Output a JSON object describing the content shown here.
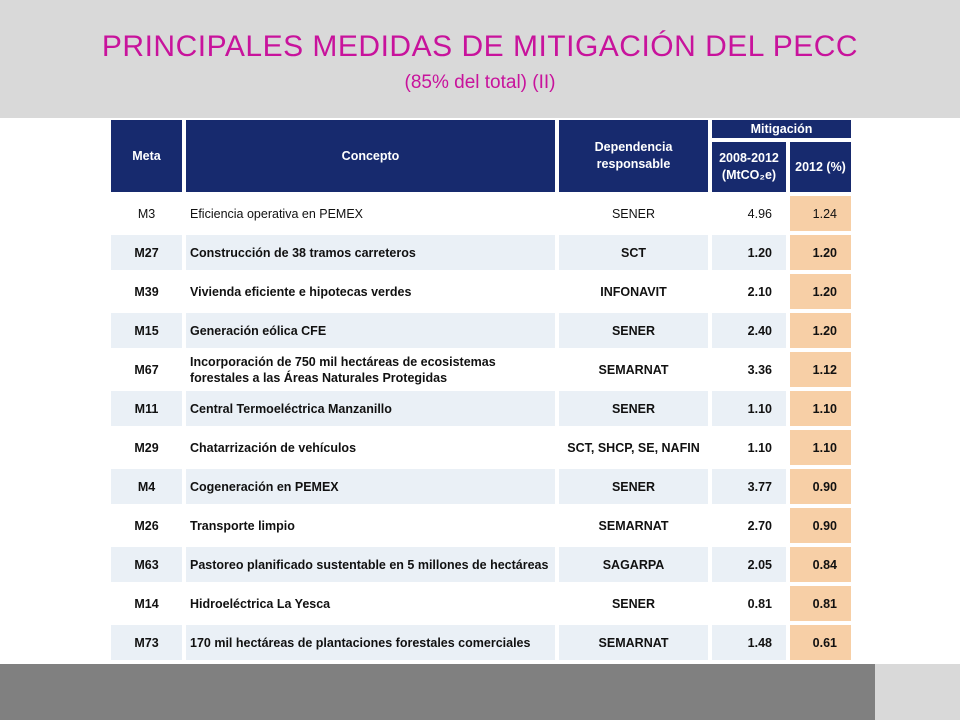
{
  "slide": {
    "title": "PRINCIPALES MEDIDAS DE MITIGACIÓN DEL PECC",
    "subtitle": "(85% del total) (II)"
  },
  "table": {
    "headers": {
      "meta": "Meta",
      "concepto": "Concepto",
      "dependencia": "Dependencia responsable",
      "mitigacion": "Mitigación",
      "mit_total": "2008-2012 (MtCO₂e)",
      "mit_pct": "2012 (%)"
    },
    "rows": [
      {
        "meta": "M3",
        "concepto": "Eficiencia operativa en PEMEX",
        "dependencia": "SENER",
        "mitigacion": "4.96",
        "pct": "1.24"
      },
      {
        "meta": "M27",
        "concepto": "Construcción de 38 tramos carreteros",
        "dependencia": "SCT",
        "mitigacion": "1.20",
        "pct": "1.20"
      },
      {
        "meta": "M39",
        "concepto": "Vivienda eficiente e hipotecas verdes",
        "dependencia": "INFONAVIT",
        "mitigacion": "2.10",
        "pct": "1.20"
      },
      {
        "meta": "M15",
        "concepto": "Generación eólica CFE",
        "dependencia": "SENER",
        "mitigacion": "2.40",
        "pct": "1.20"
      },
      {
        "meta": "M67",
        "concepto": "Incorporación de 750 mil hectáreas de ecosistemas forestales a las Áreas Naturales Protegidas",
        "dependencia": "SEMARNAT",
        "mitigacion": "3.36",
        "pct": "1.12"
      },
      {
        "meta": "M11",
        "concepto": "Central Termoeléctrica Manzanillo",
        "dependencia": "SENER",
        "mitigacion": "1.10",
        "pct": "1.10"
      },
      {
        "meta": "M29",
        "concepto": "Chatarrización de vehículos",
        "dependencia": "SCT, SHCP, SE, NAFIN",
        "mitigacion": "1.10",
        "pct": "1.10"
      },
      {
        "meta": "M4",
        "concepto": "Cogeneración en PEMEX",
        "dependencia": "SENER",
        "mitigacion": "3.77",
        "pct": "0.90"
      },
      {
        "meta": "M26",
        "concepto": "Transporte limpio",
        "dependencia": "SEMARNAT",
        "mitigacion": "2.70",
        "pct": "0.90"
      },
      {
        "meta": "M63",
        "concepto": "Pastoreo planificado sustentable en 5 millones de hectáreas",
        "dependencia": "SAGARPA",
        "mitigacion": "2.05",
        "pct": "0.84"
      },
      {
        "meta": "M14",
        "concepto": "Hidroeléctrica La Yesca",
        "dependencia": "SENER",
        "mitigacion": "0.81",
        "pct": "0.81"
      },
      {
        "meta": "M73",
        "concepto": "170 mil hectáreas de plantaciones forestales comerciales",
        "dependencia": "SEMARNAT",
        "mitigacion": "1.48",
        "pct": "0.61"
      }
    ]
  },
  "colors": {
    "title": "#c8139c",
    "header_bg": "#172a6e",
    "pct_bg": "#f7cfa6",
    "row_alt_bg": "#eaf0f6"
  }
}
